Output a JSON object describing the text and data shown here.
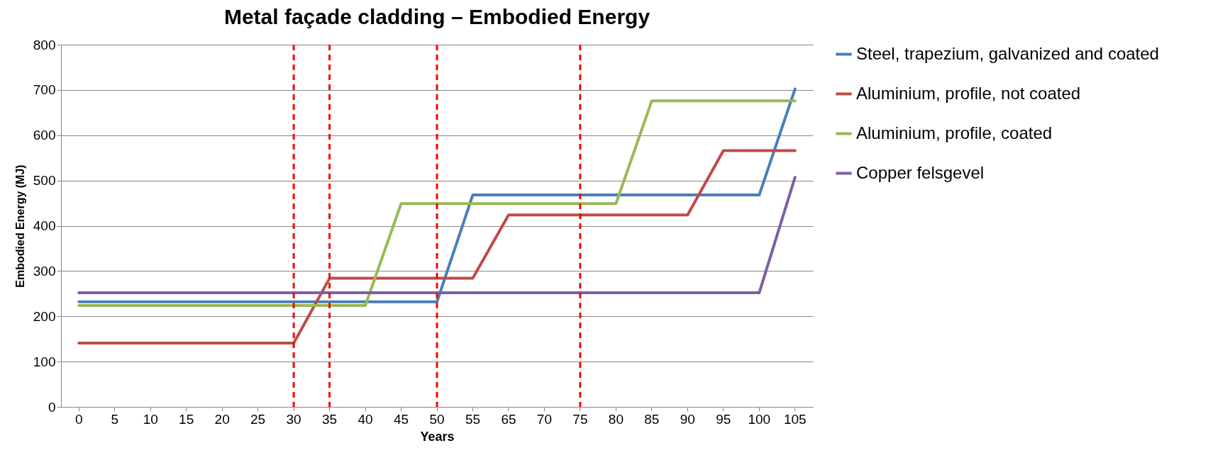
{
  "chart_data": {
    "type": "line",
    "title": "Metal façade cladding – Embodied Energy",
    "xlabel": "Years",
    "ylabel": "Embodied Energy (MJ)",
    "categories": [
      "0",
      "5",
      "10",
      "15",
      "20",
      "25",
      "30",
      "35",
      "40",
      "45",
      "50",
      "55",
      "65",
      "70",
      "75",
      "80",
      "85",
      "90",
      "95",
      "100",
      "105"
    ],
    "series": [
      {
        "name": "Steel, trapezium, galvanized and coated",
        "color": "#4a7ebb",
        "values": [
          232,
          232,
          232,
          232,
          232,
          232,
          232,
          232,
          232,
          232,
          232,
          468,
          468,
          468,
          468,
          468,
          468,
          468,
          468,
          468,
          702
        ]
      },
      {
        "name": "Aluminium, profile, not coated",
        "color": "#be4b48",
        "values": [
          141,
          141,
          141,
          141,
          141,
          141,
          141,
          284,
          284,
          284,
          284,
          284,
          424,
          424,
          424,
          424,
          424,
          424,
          566,
          566,
          566
        ]
      },
      {
        "name": "Aluminium, profile, coated",
        "color": "#98b954",
        "values": [
          224,
          224,
          224,
          224,
          224,
          224,
          224,
          224,
          224,
          449,
          449,
          449,
          449,
          449,
          449,
          449,
          676,
          676,
          676,
          676,
          676
        ]
      },
      {
        "name": "Copper felsgevel",
        "color": "#7d60a0",
        "values": [
          252,
          252,
          252,
          252,
          252,
          252,
          252,
          252,
          252,
          252,
          252,
          252,
          252,
          252,
          252,
          252,
          252,
          252,
          252,
          252,
          507
        ]
      }
    ],
    "ylim": [
      0,
      800
    ],
    "yticks": [
      0,
      100,
      200,
      300,
      400,
      500,
      600,
      700,
      800
    ],
    "grid": "y",
    "legend": "right",
    "line_style": "solid",
    "ref_lines": [
      {
        "axis": "x",
        "value": "30",
        "color": "#ff0000",
        "line_style": "dashed"
      },
      {
        "axis": "x",
        "value": "35",
        "color": "#ff0000",
        "line_style": "dashed"
      },
      {
        "axis": "x",
        "value": "50",
        "color": "#ff0000",
        "line_style": "dashed"
      },
      {
        "axis": "x",
        "value": "75",
        "color": "#ff0000",
        "line_style": "dashed"
      }
    ]
  }
}
